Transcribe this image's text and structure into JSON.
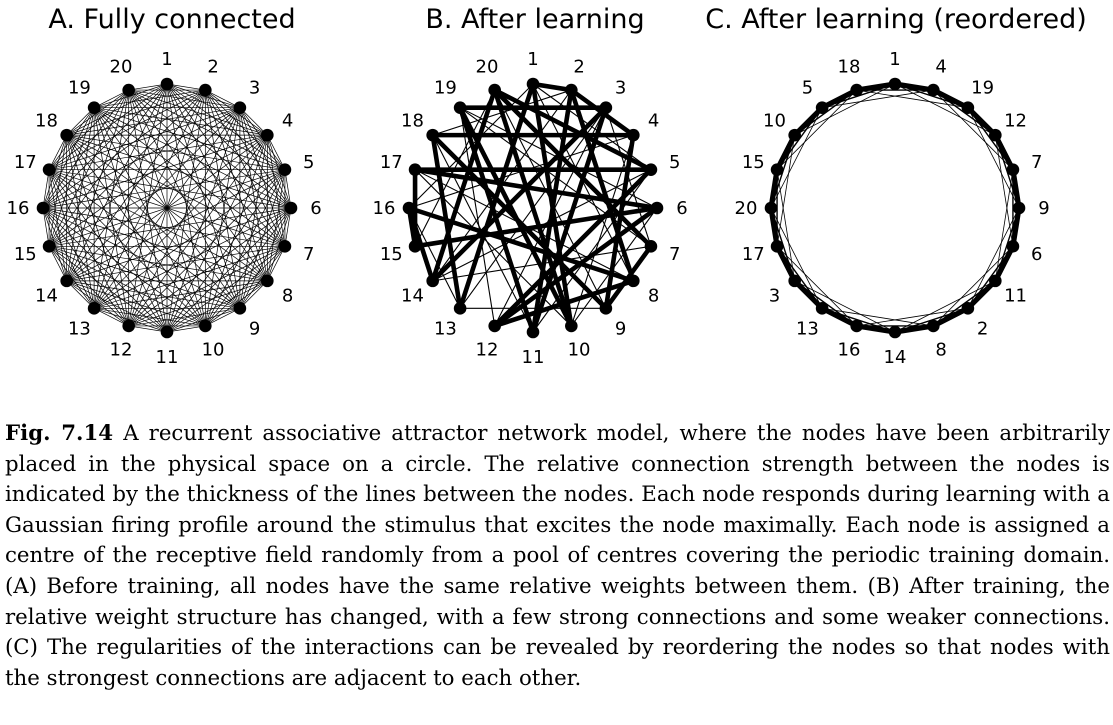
{
  "panels": [
    {
      "id": "A",
      "title": "A. Fully connected",
      "node_order": [
        1,
        2,
        3,
        4,
        5,
        6,
        7,
        8,
        9,
        10,
        11,
        12,
        13,
        14,
        15,
        16,
        17,
        18,
        19,
        20
      ],
      "edges": "all-pairs-uniform"
    },
    {
      "id": "B",
      "title": "B. After learning",
      "node_order": [
        1,
        2,
        3,
        4,
        5,
        6,
        7,
        8,
        9,
        10,
        11,
        12,
        13,
        14,
        15,
        16,
        17,
        18,
        19,
        20
      ],
      "strong_edges": [
        [
          1,
          2
        ],
        [
          1,
          13
        ],
        [
          1,
          10
        ],
        [
          2,
          4
        ],
        [
          2,
          8
        ],
        [
          2,
          11
        ],
        [
          3,
          19
        ],
        [
          3,
          14
        ],
        [
          4,
          18
        ],
        [
          4,
          9
        ],
        [
          5,
          17
        ],
        [
          5,
          12
        ],
        [
          6,
          15
        ],
        [
          6,
          12
        ],
        [
          7,
          9
        ],
        [
          7,
          20
        ],
        [
          8,
          16
        ],
        [
          8,
          12
        ],
        [
          9,
          18
        ],
        [
          10,
          19
        ],
        [
          11,
          3
        ],
        [
          13,
          18
        ],
        [
          14,
          16
        ],
        [
          14,
          20
        ],
        [
          15,
          17
        ],
        [
          16,
          15
        ],
        [
          17,
          6
        ],
        [
          19,
          11
        ],
        [
          20,
          5
        ],
        [
          20,
          10
        ]
      ],
      "weak_edges": [
        [
          1,
          5
        ],
        [
          1,
          16
        ],
        [
          2,
          14
        ],
        [
          3,
          7
        ],
        [
          3,
          13
        ],
        [
          4,
          10
        ],
        [
          5,
          11
        ],
        [
          6,
          19
        ],
        [
          7,
          14
        ],
        [
          8,
          17
        ],
        [
          9,
          13
        ],
        [
          10,
          17
        ],
        [
          11,
          18
        ],
        [
          12,
          19
        ],
        [
          13,
          16
        ],
        [
          15,
          20
        ],
        [
          16,
          4
        ],
        [
          18,
          2
        ],
        [
          19,
          7
        ],
        [
          20,
          9
        ],
        [
          12,
          3
        ],
        [
          6,
          10
        ],
        [
          5,
          14
        ],
        [
          8,
          1
        ]
      ]
    },
    {
      "id": "C",
      "title": "C. After learning (reordered)",
      "node_order": [
        1,
        4,
        19,
        12,
        7,
        9,
        6,
        11,
        2,
        8,
        14,
        16,
        13,
        3,
        17,
        20,
        15,
        10,
        5,
        18
      ]
    }
  ],
  "caption": {
    "label": "Fig. 7.14",
    "text": "A recurrent associative attractor network model, where the nodes have been arbitrarily placed in the physical space on a circle. The relative connection strength between the nodes is indicated by the thickness of the lines between the nodes. Each node responds during learning with a Gaussian firing profile around the stimulus that excites the node maximally. Each node is assigned a centre of the receptive field randomly from a pool of centres covering the periodic training domain. (A) Before training, all nodes have the same relative weights between them. (B) After training, the relative weight structure has changed, with a few strong connections and some weaker connections. (C) The regularities of the interactions can be revealed by reordering the nodes so that nodes with the strongest connections are adjacent to each other."
  }
}
